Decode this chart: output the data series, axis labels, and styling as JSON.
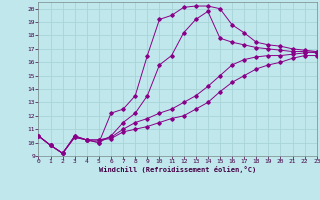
{
  "xlabel": "Windchill (Refroidissement éolien,°C)",
  "bg_color": "#c0e8ec",
  "grid_color": "#a8d4d8",
  "line_color": "#880088",
  "ylim": [
    9,
    20.5
  ],
  "xlim": [
    0,
    23
  ],
  "ytick_labels": [
    "9",
    "10",
    "11",
    "12",
    "13",
    "14",
    "15",
    "16",
    "17",
    "18",
    "19",
    "20"
  ],
  "ytick_vals": [
    9,
    10,
    11,
    12,
    13,
    14,
    15,
    16,
    17,
    18,
    19,
    20
  ],
  "xtick_vals": [
    0,
    1,
    2,
    3,
    4,
    5,
    6,
    7,
    8,
    9,
    10,
    11,
    12,
    13,
    14,
    15,
    16,
    17,
    18,
    19,
    20,
    21,
    22,
    23
  ],
  "c1x": [
    0,
    1,
    2,
    3,
    4,
    5,
    6,
    7,
    8,
    9,
    10,
    11,
    12,
    13,
    14,
    15,
    16,
    17,
    18,
    19,
    20,
    21,
    22,
    23
  ],
  "c1y": [
    10.5,
    9.8,
    9.2,
    10.5,
    10.2,
    10.0,
    12.2,
    12.5,
    13.5,
    16.5,
    19.2,
    19.5,
    20.1,
    20.2,
    20.2,
    20.0,
    18.8,
    18.2,
    17.5,
    17.3,
    17.2,
    17.0,
    16.9,
    16.8
  ],
  "c2x": [
    0,
    1,
    2,
    3,
    4,
    5,
    6,
    7,
    8,
    9,
    10,
    11,
    12,
    13,
    14,
    15,
    16,
    17,
    18,
    19,
    20,
    21,
    22,
    23
  ],
  "c2y": [
    10.5,
    9.8,
    9.2,
    10.5,
    10.2,
    10.0,
    10.5,
    11.5,
    12.2,
    13.5,
    15.8,
    16.5,
    18.2,
    19.2,
    19.8,
    17.8,
    17.5,
    17.3,
    17.1,
    17.0,
    16.9,
    16.8,
    16.8,
    16.7
  ],
  "c3x": [
    0,
    1,
    2,
    3,
    4,
    5,
    6,
    7,
    8,
    9,
    10,
    11,
    12,
    13,
    14,
    15,
    16,
    17,
    18,
    19,
    20,
    21,
    22,
    23
  ],
  "c3y": [
    10.5,
    9.8,
    9.2,
    10.4,
    10.2,
    10.2,
    10.3,
    10.8,
    11.0,
    11.2,
    11.5,
    11.8,
    12.0,
    12.5,
    13.0,
    13.8,
    14.5,
    15.0,
    15.5,
    15.8,
    16.0,
    16.3,
    16.5,
    16.5
  ],
  "c4x": [
    0,
    1,
    2,
    3,
    4,
    5,
    6,
    7,
    8,
    9,
    10,
    11,
    12,
    13,
    14,
    15,
    16,
    17,
    18,
    19,
    20,
    21,
    22,
    23
  ],
  "c4y": [
    10.5,
    9.8,
    9.2,
    10.4,
    10.2,
    10.2,
    10.4,
    11.0,
    11.5,
    11.8,
    12.2,
    12.5,
    13.0,
    13.5,
    14.2,
    15.0,
    15.8,
    16.2,
    16.4,
    16.5,
    16.5,
    16.6,
    16.7,
    16.8
  ]
}
